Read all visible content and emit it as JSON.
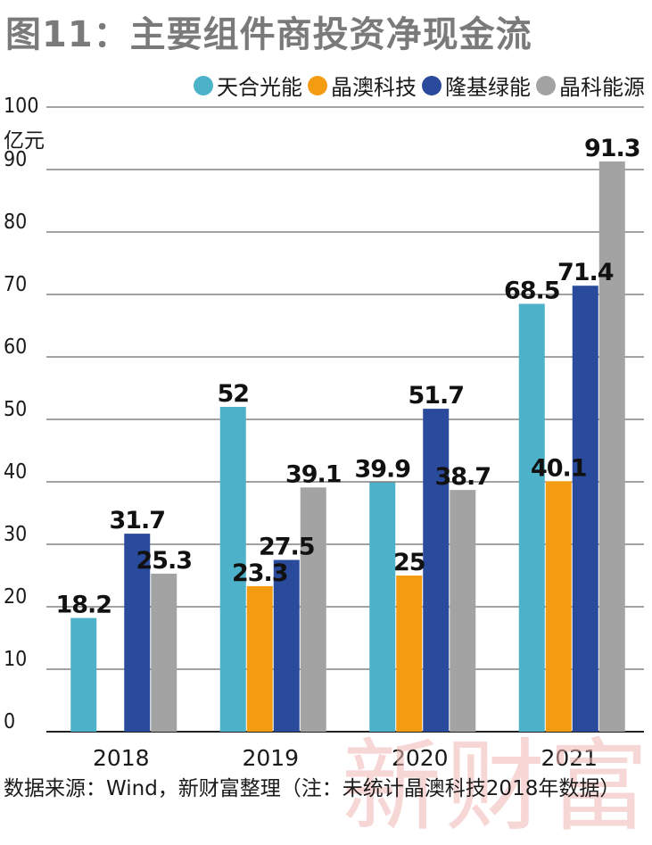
{
  "title": "图11：主要组件商投资净现金流",
  "legend": [
    {
      "label": "天合光能",
      "color": "#4cb1c9"
    },
    {
      "label": "晶澳科技",
      "color": "#f39c12"
    },
    {
      "label": "隆基绿能",
      "color": "#2a4a9c"
    },
    {
      "label": "晶科能源",
      "color": "#a3a3a3"
    }
  ],
  "source": "数据来源：Wind，新财富整理（注：未统计晶澳科技2018年数据）",
  "watermark": "新财富",
  "chart_data": {
    "type": "bar",
    "title": "图11：主要组件商投资净现金流",
    "ylabel": "亿元",
    "ylim": [
      0,
      100
    ],
    "yticks": [
      0,
      10,
      20,
      30,
      40,
      50,
      60,
      70,
      80,
      90,
      100
    ],
    "grid": true,
    "legend_position": "top-right",
    "categories": [
      "2018",
      "2019",
      "2020",
      "2021"
    ],
    "series": [
      {
        "name": "天合光能",
        "color": "#4cb1c9",
        "values": [
          18.2,
          52,
          39.9,
          68.5
        ],
        "labels": [
          "18.2",
          "52",
          "39.9",
          "68.5"
        ]
      },
      {
        "name": "晶澳科技",
        "color": "#f39c12",
        "values": [
          null,
          23.3,
          25,
          40.1
        ],
        "labels": [
          "",
          "23.3",
          "25",
          "40.1"
        ]
      },
      {
        "name": "隆基绿能",
        "color": "#2a4a9c",
        "values": [
          31.7,
          27.5,
          51.7,
          71.4
        ],
        "labels": [
          "31.7",
          "27.5",
          "51.7",
          "71.4"
        ]
      },
      {
        "name": "晶科能源",
        "color": "#a3a3a3",
        "values": [
          25.3,
          39.1,
          38.7,
          91.3
        ],
        "labels": [
          "25.3",
          "39.1",
          "38.7",
          "91.3"
        ]
      }
    ]
  }
}
